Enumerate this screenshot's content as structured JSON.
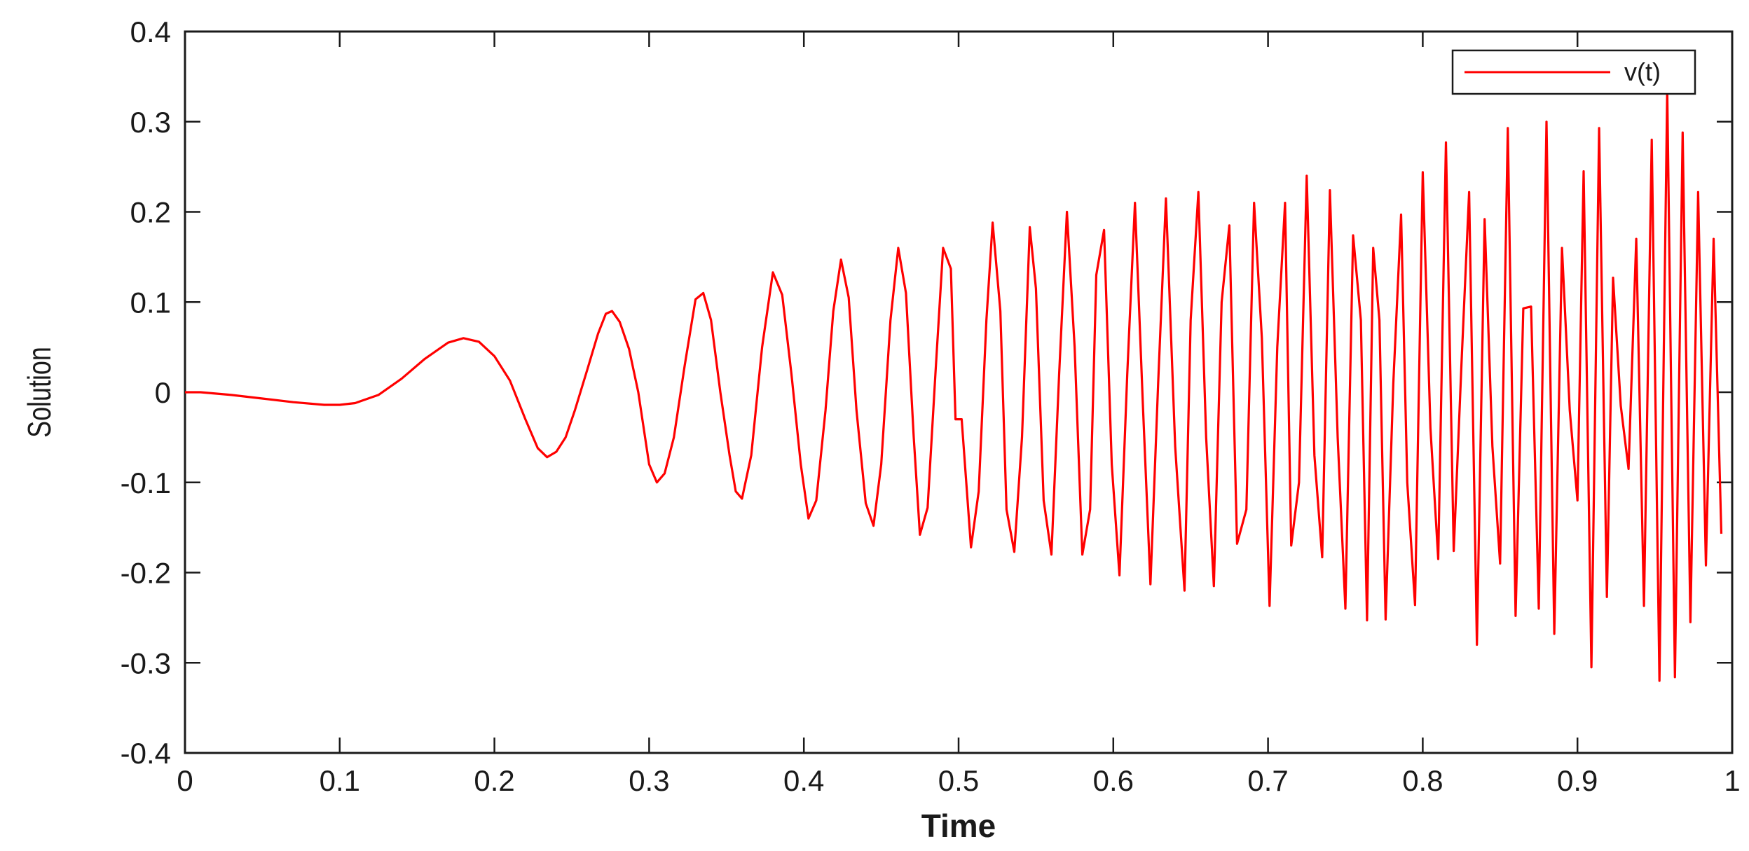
{
  "chart_data": {
    "type": "line",
    "xlabel": "Time",
    "ylabel": "Solution",
    "xlim": [
      0,
      1
    ],
    "ylim": [
      -0.4,
      0.4
    ],
    "x_ticks": [
      "0",
      "0.1",
      "0.2",
      "0.3",
      "0.4",
      "0.5",
      "0.6",
      "0.7",
      "0.8",
      "0.9",
      "1"
    ],
    "y_ticks": [
      "0.4",
      "0.3",
      "0.2",
      "0.1",
      "0",
      "-0.1",
      "-0.2",
      "-0.3",
      "-0.4"
    ],
    "grid": false,
    "legend_position": "top-right",
    "series": [
      {
        "name": "v(t)",
        "color": "#ff0000",
        "points": [
          [
            0,
            0
          ],
          [
            0.01,
            0
          ],
          [
            0.03,
            -0.003
          ],
          [
            0.05,
            -0.007
          ],
          [
            0.07,
            -0.011
          ],
          [
            0.09,
            -0.014
          ],
          [
            0.1,
            -0.014
          ],
          [
            0.11,
            -0.012
          ],
          [
            0.125,
            -0.003
          ],
          [
            0.14,
            0.015
          ],
          [
            0.155,
            0.037
          ],
          [
            0.17,
            0.055
          ],
          [
            0.18,
            0.06
          ],
          [
            0.19,
            0.056
          ],
          [
            0.2,
            0.04
          ],
          [
            0.21,
            0.013
          ],
          [
            0.22,
            -0.03
          ],
          [
            0.228,
            -0.062
          ],
          [
            0.234,
            -0.072
          ],
          [
            0.24,
            -0.066
          ],
          [
            0.246,
            -0.05
          ],
          [
            0.252,
            -0.02
          ],
          [
            0.26,
            0.025
          ],
          [
            0.267,
            0.065
          ],
          [
            0.272,
            0.087
          ],
          [
            0.276,
            0.09
          ],
          [
            0.281,
            0.078
          ],
          [
            0.287,
            0.048
          ],
          [
            0.293,
            0
          ],
          [
            0.3,
            -0.08
          ],
          [
            0.305,
            -0.1
          ],
          [
            0.31,
            -0.09
          ],
          [
            0.316,
            -0.05
          ],
          [
            0.323,
            0.03
          ],
          [
            0.33,
            0.103
          ],
          [
            0.335,
            0.11
          ],
          [
            0.34,
            0.08
          ],
          [
            0.346,
            0
          ],
          [
            0.352,
            -0.07
          ],
          [
            0.356,
            -0.11
          ],
          [
            0.36,
            -0.118
          ],
          [
            0.366,
            -0.07
          ],
          [
            0.373,
            0.05
          ],
          [
            0.38,
            0.133
          ],
          [
            0.386,
            0.108
          ],
          [
            0.392,
            0.02
          ],
          [
            0.398,
            -0.08
          ],
          [
            0.403,
            -0.14
          ],
          [
            0.408,
            -0.12
          ],
          [
            0.414,
            -0.02
          ],
          [
            0.419,
            0.09
          ],
          [
            0.424,
            0.147
          ],
          [
            0.429,
            0.105
          ],
          [
            0.434,
            -0.02
          ],
          [
            0.44,
            -0.123
          ],
          [
            0.445,
            -0.148
          ],
          [
            0.45,
            -0.08
          ],
          [
            0.456,
            0.08
          ],
          [
            0.461,
            0.16
          ],
          [
            0.466,
            0.11
          ],
          [
            0.471,
            -0.05
          ],
          [
            0.475,
            -0.158
          ],
          [
            0.48,
            -0.128
          ],
          [
            0.485,
            0.02
          ],
          [
            0.49,
            0.16
          ],
          [
            0.495,
            0.137
          ],
          [
            0.498,
            -0.03
          ],
          [
            0.502,
            -0.03
          ],
          [
            0.508,
            -0.172
          ],
          [
            0.513,
            -0.11
          ],
          [
            0.518,
            0.08
          ],
          [
            0.522,
            0.188
          ],
          [
            0.527,
            0.09
          ],
          [
            0.531,
            -0.13
          ],
          [
            0.536,
            -0.177
          ],
          [
            0.541,
            -0.05
          ],
          [
            0.546,
            0.183
          ],
          [
            0.55,
            0.115
          ],
          [
            0.555,
            -0.12
          ],
          [
            0.56,
            -0.18
          ],
          [
            0.565,
            0.02
          ],
          [
            0.57,
            0.2
          ],
          [
            0.575,
            0.05
          ],
          [
            0.58,
            -0.18
          ],
          [
            0.585,
            -0.13
          ],
          [
            0.589,
            0.13
          ],
          [
            0.594,
            0.18
          ],
          [
            0.599,
            -0.08
          ],
          [
            0.604,
            -0.203
          ],
          [
            0.609,
            0.02
          ],
          [
            0.614,
            0.21
          ],
          [
            0.619,
            -0.01
          ],
          [
            0.624,
            -0.213
          ],
          [
            0.629,
            0.01
          ],
          [
            0.634,
            0.215
          ],
          [
            0.64,
            -0.06
          ],
          [
            0.646,
            -0.22
          ],
          [
            0.65,
            0.08
          ],
          [
            0.655,
            0.222
          ],
          [
            0.66,
            -0.05
          ],
          [
            0.665,
            -0.215
          ],
          [
            0.67,
            0.1
          ],
          [
            0.675,
            0.185
          ],
          [
            0.68,
            -0.168
          ],
          [
            0.686,
            -0.13
          ],
          [
            0.691,
            0.21
          ],
          [
            0.696,
            0.06
          ],
          [
            0.701,
            -0.237
          ],
          [
            0.706,
            0.05
          ],
          [
            0.711,
            0.21
          ],
          [
            0.715,
            -0.17
          ],
          [
            0.72,
            -0.1
          ],
          [
            0.725,
            0.24
          ],
          [
            0.73,
            -0.07
          ],
          [
            0.735,
            -0.183
          ],
          [
            0.74,
            0.224
          ],
          [
            0.745,
            -0.05
          ],
          [
            0.75,
            -0.24
          ],
          [
            0.755,
            0.174
          ],
          [
            0.76,
            0.08
          ],
          [
            0.764,
            -0.253
          ],
          [
            0.768,
            0.16
          ],
          [
            0.772,
            0.08
          ],
          [
            0.776,
            -0.252
          ],
          [
            0.781,
            0.01
          ],
          [
            0.786,
            0.197
          ],
          [
            0.79,
            -0.1
          ],
          [
            0.795,
            -0.236
          ],
          [
            0.8,
            0.244
          ],
          [
            0.805,
            -0.04
          ],
          [
            0.81,
            -0.185
          ],
          [
            0.815,
            0.277
          ],
          [
            0.82,
            -0.176
          ],
          [
            0.825,
            0.03
          ],
          [
            0.83,
            0.222
          ],
          [
            0.835,
            -0.28
          ],
          [
            0.84,
            0.192
          ],
          [
            0.845,
            -0.06
          ],
          [
            0.85,
            -0.19
          ],
          [
            0.855,
            0.293
          ],
          [
            0.86,
            -0.248
          ],
          [
            0.865,
            0.093
          ],
          [
            0.87,
            0.095
          ],
          [
            0.875,
            -0.24
          ],
          [
            0.88,
            0.3
          ],
          [
            0.885,
            -0.268
          ],
          [
            0.89,
            0.16
          ],
          [
            0.895,
            -0.02
          ],
          [
            0.9,
            -0.12
          ],
          [
            0.904,
            0.245
          ],
          [
            0.909,
            -0.305
          ],
          [
            0.914,
            0.293
          ],
          [
            0.919,
            -0.227
          ],
          [
            0.923,
            0.127
          ],
          [
            0.928,
            -0.015
          ],
          [
            0.933,
            -0.085
          ],
          [
            0.938,
            0.17
          ],
          [
            0.943,
            -0.237
          ],
          [
            0.948,
            0.28
          ],
          [
            0.953,
            -0.32
          ],
          [
            0.958,
            0.335
          ],
          [
            0.963,
            -0.316
          ],
          [
            0.968,
            0.288
          ],
          [
            0.973,
            -0.255
          ],
          [
            0.978,
            0.222
          ],
          [
            0.983,
            -0.192
          ],
          [
            0.988,
            0.17
          ],
          [
            0.993,
            -0.157
          ]
        ]
      }
    ]
  }
}
